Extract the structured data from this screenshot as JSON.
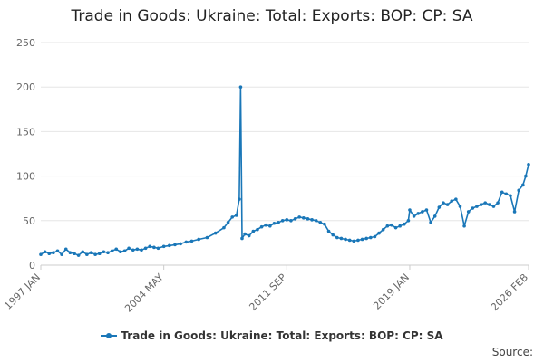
{
  "header": {
    "title": "Trade in Goods: Ukraine: Total: Exports: BOP: CP: SA"
  },
  "footer": {
    "source_label": "Source:"
  },
  "chart_data": {
    "type": "line",
    "title": "Trade in Goods: Ukraine: Total: Exports: BOP: CP: SA",
    "xlabel": "",
    "ylabel": "",
    "ylim": [
      0,
      250
    ],
    "yticks": [
      0,
      50,
      100,
      150,
      200,
      250
    ],
    "xlim": [
      "1997-01",
      "2026-02"
    ],
    "xtick_labels": [
      "1997 JAN",
      "2004 MAY",
      "2011 SEP",
      "2019 JAN",
      "2026 FEB"
    ],
    "xtick_dates": [
      "1997-01",
      "2004-05",
      "2011-09",
      "2019-01",
      "2026-02"
    ],
    "grid": true,
    "legend_position": "bottom",
    "colors": {
      "series": "#1a77b8",
      "grid": "#e6e6e6",
      "axis": "#cccccc"
    },
    "series": [
      {
        "name": "Trade in Goods: Ukraine: Total: Exports: BOP: CP: SA",
        "frequency": "monthly",
        "points": [
          [
            "1997-01",
            12
          ],
          [
            "1997-04",
            15
          ],
          [
            "1997-07",
            13
          ],
          [
            "1997-10",
            14
          ],
          [
            "1998-01",
            16
          ],
          [
            "1998-04",
            12
          ],
          [
            "1998-07",
            18
          ],
          [
            "1998-10",
            14
          ],
          [
            "1999-01",
            13
          ],
          [
            "1999-04",
            11
          ],
          [
            "1999-07",
            15
          ],
          [
            "1999-10",
            12
          ],
          [
            "2000-01",
            14
          ],
          [
            "2000-04",
            12
          ],
          [
            "2000-07",
            13
          ],
          [
            "2000-10",
            15
          ],
          [
            "2001-01",
            14
          ],
          [
            "2001-04",
            16
          ],
          [
            "2001-07",
            18
          ],
          [
            "2001-10",
            15
          ],
          [
            "2002-01",
            16
          ],
          [
            "2002-04",
            19
          ],
          [
            "2002-07",
            17
          ],
          [
            "2002-10",
            18
          ],
          [
            "2003-01",
            17
          ],
          [
            "2003-04",
            19
          ],
          [
            "2003-07",
            21
          ],
          [
            "2003-10",
            20
          ],
          [
            "2004-01",
            19
          ],
          [
            "2004-05",
            21
          ],
          [
            "2004-09",
            22
          ],
          [
            "2005-01",
            23
          ],
          [
            "2005-05",
            24
          ],
          [
            "2005-09",
            26
          ],
          [
            "2006-01",
            27
          ],
          [
            "2006-06",
            29
          ],
          [
            "2006-12",
            31
          ],
          [
            "2007-06",
            36
          ],
          [
            "2007-12",
            42
          ],
          [
            "2008-03",
            48
          ],
          [
            "2008-06",
            54
          ],
          [
            "2008-09",
            56
          ],
          [
            "2008-11",
            74
          ],
          [
            "2008-12",
            200
          ],
          [
            "2009-01",
            30
          ],
          [
            "2009-03",
            35
          ],
          [
            "2009-06",
            33
          ],
          [
            "2009-09",
            38
          ],
          [
            "2009-12",
            40
          ],
          [
            "2010-03",
            43
          ],
          [
            "2010-06",
            45
          ],
          [
            "2010-09",
            44
          ],
          [
            "2010-12",
            47
          ],
          [
            "2011-03",
            48
          ],
          [
            "2011-06",
            50
          ],
          [
            "2011-09",
            51
          ],
          [
            "2011-12",
            50
          ],
          [
            "2012-03",
            52
          ],
          [
            "2012-06",
            54
          ],
          [
            "2012-09",
            53
          ],
          [
            "2012-12",
            52
          ],
          [
            "2013-03",
            51
          ],
          [
            "2013-06",
            50
          ],
          [
            "2013-09",
            48
          ],
          [
            "2013-12",
            46
          ],
          [
            "2014-03",
            38
          ],
          [
            "2014-06",
            34
          ],
          [
            "2014-09",
            31
          ],
          [
            "2014-12",
            30
          ],
          [
            "2015-03",
            29
          ],
          [
            "2015-06",
            28
          ],
          [
            "2015-09",
            27
          ],
          [
            "2015-12",
            28
          ],
          [
            "2016-03",
            29
          ],
          [
            "2016-06",
            30
          ],
          [
            "2016-09",
            31
          ],
          [
            "2016-12",
            32
          ],
          [
            "2017-03",
            36
          ],
          [
            "2017-06",
            40
          ],
          [
            "2017-09",
            44
          ],
          [
            "2017-12",
            45
          ],
          [
            "2018-03",
            42
          ],
          [
            "2018-06",
            44
          ],
          [
            "2018-09",
            46
          ],
          [
            "2018-12",
            50
          ],
          [
            "2019-01",
            62
          ],
          [
            "2019-04",
            55
          ],
          [
            "2019-07",
            58
          ],
          [
            "2019-10",
            60
          ],
          [
            "2020-01",
            62
          ],
          [
            "2020-04",
            48
          ],
          [
            "2020-07",
            55
          ],
          [
            "2020-10",
            65
          ],
          [
            "2021-01",
            70
          ],
          [
            "2021-04",
            68
          ],
          [
            "2021-07",
            72
          ],
          [
            "2021-10",
            74
          ],
          [
            "2022-01",
            66
          ],
          [
            "2022-04",
            44
          ],
          [
            "2022-07",
            60
          ],
          [
            "2022-10",
            64
          ],
          [
            "2023-01",
            66
          ],
          [
            "2023-04",
            68
          ],
          [
            "2023-07",
            70
          ],
          [
            "2023-10",
            68
          ],
          [
            "2024-01",
            66
          ],
          [
            "2024-04",
            70
          ],
          [
            "2024-07",
            82
          ],
          [
            "2024-10",
            80
          ],
          [
            "2025-01",
            78
          ],
          [
            "2025-04",
            60
          ],
          [
            "2025-07",
            84
          ],
          [
            "2025-10",
            90
          ],
          [
            "2025-12",
            100
          ],
          [
            "2026-02",
            113
          ]
        ]
      }
    ]
  }
}
